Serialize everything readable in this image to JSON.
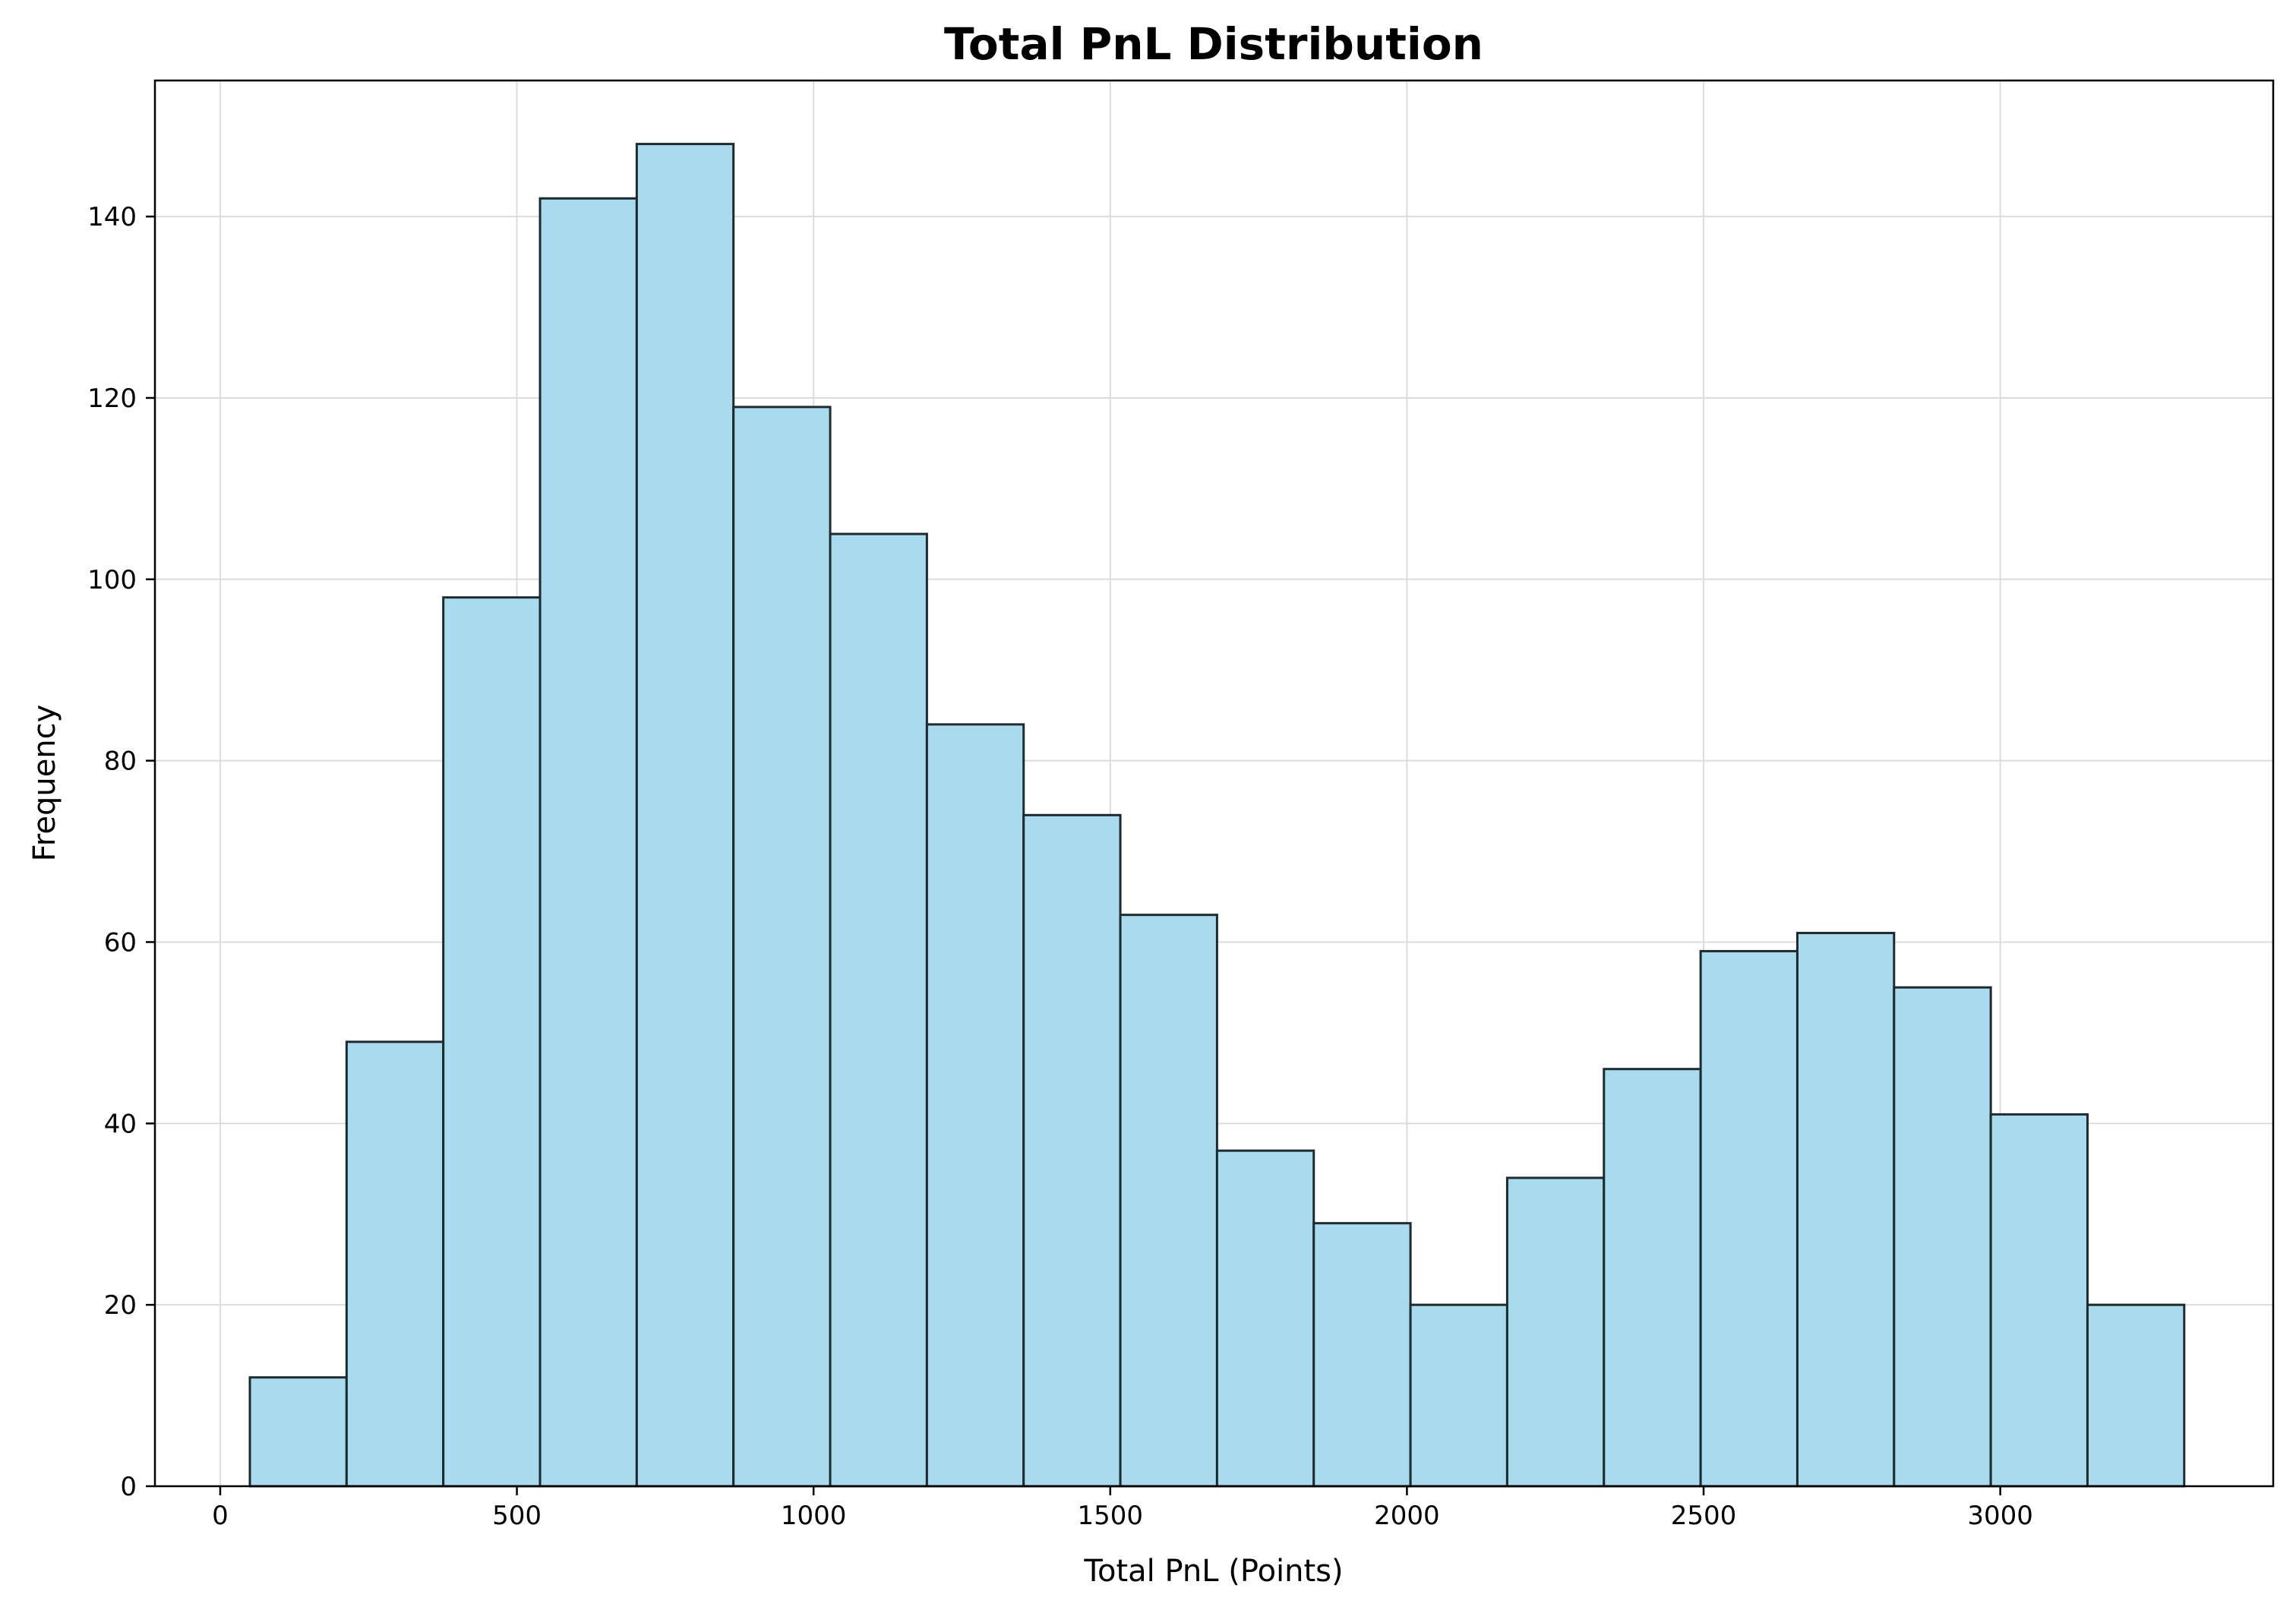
{
  "chart_data": {
    "type": "bar",
    "title": "Total PnL Distribution",
    "xlabel": "Total PnL (Points)",
    "ylabel": "Frequency",
    "xlim": [
      -110,
      3460
    ],
    "ylim": [
      0,
      155
    ],
    "xticks": [
      0,
      500,
      1000,
      1500,
      2000,
      2500,
      3000
    ],
    "yticks": [
      0,
      20,
      40,
      60,
      80,
      100,
      120,
      140
    ],
    "grid": true,
    "bar_color": "#a9dbef",
    "edge_color": "#1e2a2e",
    "bins": [
      {
        "x0": 50,
        "x1": 213,
        "value": 12
      },
      {
        "x0": 213,
        "x1": 376,
        "value": 49
      },
      {
        "x0": 376,
        "x1": 539,
        "value": 98
      },
      {
        "x0": 539,
        "x1": 702,
        "value": 142
      },
      {
        "x0": 702,
        "x1": 865,
        "value": 148
      },
      {
        "x0": 865,
        "x1": 1028,
        "value": 119
      },
      {
        "x0": 1028,
        "x1": 1191,
        "value": 105
      },
      {
        "x0": 1191,
        "x1": 1354,
        "value": 84
      },
      {
        "x0": 1354,
        "x1": 1517,
        "value": 74
      },
      {
        "x0": 1517,
        "x1": 1680,
        "value": 63
      },
      {
        "x0": 1680,
        "x1": 1843,
        "value": 37
      },
      {
        "x0": 1843,
        "x1": 2006,
        "value": 29
      },
      {
        "x0": 2006,
        "x1": 2169,
        "value": 20
      },
      {
        "x0": 2169,
        "x1": 2332,
        "value": 34
      },
      {
        "x0": 2332,
        "x1": 2495,
        "value": 46
      },
      {
        "x0": 2495,
        "x1": 2658,
        "value": 59
      },
      {
        "x0": 2658,
        "x1": 2821,
        "value": 61
      },
      {
        "x0": 2821,
        "x1": 2984,
        "value": 55
      },
      {
        "x0": 2984,
        "x1": 3147,
        "value": 41
      },
      {
        "x0": 3147,
        "x1": 3310,
        "value": 20
      }
    ]
  }
}
